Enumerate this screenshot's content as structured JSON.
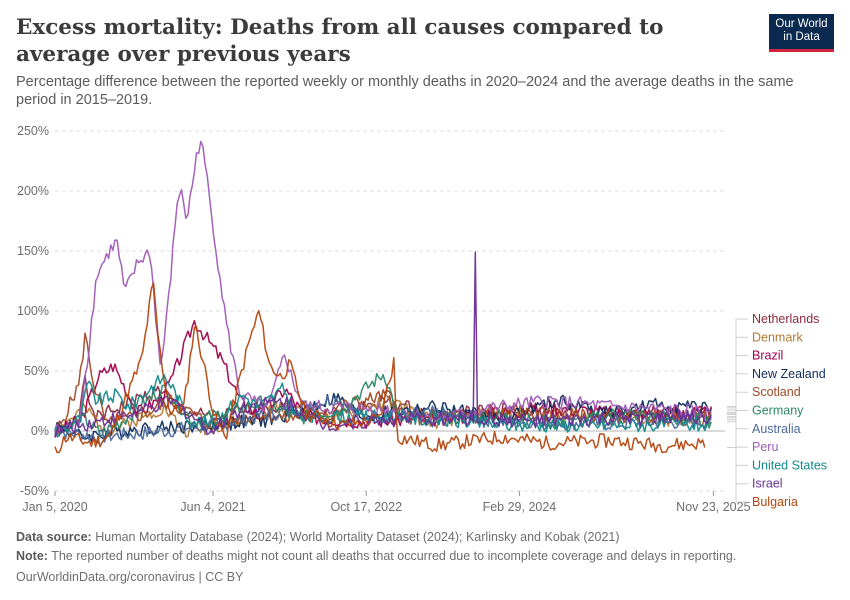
{
  "header": {
    "title": "Excess mortality: Deaths from all causes compared to average over previous years",
    "subtitle": "Percentage difference between the reported weekly or monthly deaths in 2020–2024 and the average deaths in the same period in 2015–2019."
  },
  "logo": {
    "line1": "Our World",
    "line2": "in Data"
  },
  "footer": {
    "source_label": "Data source:",
    "source_text": "Human Mortality Database (2024); World Mortality Dataset (2024); Karlinsky and Kobak (2021)",
    "note_label": "Note:",
    "note_text": "The reported number of deaths might not count all deaths that occurred due to incomplete coverage and delays in reporting.",
    "url": "OurWorldinData.org/coronavirus | CC BY"
  },
  "chart_data": {
    "type": "line",
    "y_unit": "%",
    "ylim": [
      -50,
      250
    ],
    "y_ticks": [
      -50,
      0,
      50,
      100,
      150,
      200,
      250
    ],
    "y_tick_labels": [
      "-50%",
      "0%",
      "50%",
      "100%",
      "150%",
      "200%",
      "250%"
    ],
    "x_range": [
      "2020-01-05",
      "2025-12-31"
    ],
    "x_ticks": [
      "2020-01-05",
      "2021-06-04",
      "2022-10-17",
      "2024-02-29",
      "2025-11-23"
    ],
    "x_tick_labels": [
      "Jan 5, 2020",
      "Jun 4, 2021",
      "Oct 17, 2022",
      "Feb 29, 2024",
      "Nov 23, 2025"
    ],
    "grid": "horizontal dashed",
    "legend_position": "right",
    "series": [
      {
        "name": "Netherlands",
        "color": "#8c2a3c",
        "end": "2025-11-16",
        "points": [
          [
            "2020-01-05",
            2
          ],
          [
            "2020-03-20",
            5
          ],
          [
            "2020-04-10",
            50
          ],
          [
            "2020-05-10",
            10
          ],
          [
            "2020-11-01",
            30
          ],
          [
            "2020-12-20",
            35
          ],
          [
            "2021-02-01",
            20
          ],
          [
            "2021-06-01",
            10
          ],
          [
            "2021-11-20",
            22
          ],
          [
            "2022-06-01",
            12
          ],
          [
            "2022-12-20",
            25
          ],
          [
            "2023-06-01",
            12
          ],
          [
            "2024-01-01",
            18
          ],
          [
            "2024-09-01",
            12
          ],
          [
            "2025-03-01",
            16
          ],
          [
            "2025-11-16",
            14
          ]
        ]
      },
      {
        "name": "Denmark",
        "color": "#b27a33",
        "end": "2025-11-16",
        "points": [
          [
            "2020-01-05",
            0
          ],
          [
            "2020-04-10",
            18
          ],
          [
            "2020-07-01",
            0
          ],
          [
            "2020-12-25",
            20
          ],
          [
            "2021-03-01",
            0
          ],
          [
            "2021-11-01",
            10
          ],
          [
            "2022-02-01",
            25
          ],
          [
            "2022-07-01",
            10
          ],
          [
            "2022-12-20",
            25
          ],
          [
            "2023-06-01",
            8
          ],
          [
            "2024-01-01",
            15
          ],
          [
            "2024-10-01",
            10
          ],
          [
            "2025-11-16",
            10
          ]
        ]
      },
      {
        "name": "Brazil",
        "color": "#a1004b",
        "end": "2025-11-16",
        "points": [
          [
            "2020-01-05",
            -2
          ],
          [
            "2020-04-01",
            10
          ],
          [
            "2020-05-25",
            45
          ],
          [
            "2020-07-15",
            55
          ],
          [
            "2020-10-01",
            15
          ],
          [
            "2020-12-01",
            25
          ],
          [
            "2021-01-15",
            40
          ],
          [
            "2021-04-05",
            92
          ],
          [
            "2021-05-20",
            75
          ],
          [
            "2021-07-01",
            60
          ],
          [
            "2021-09-01",
            25
          ],
          [
            "2021-11-01",
            12
          ],
          [
            "2022-01-25",
            35
          ],
          [
            "2022-04-01",
            12
          ],
          [
            "2022-10-01",
            8
          ],
          [
            "2023-06-01",
            10
          ],
          [
            "2024-01-01",
            15
          ],
          [
            "2024-06-01",
            20
          ],
          [
            "2025-01-01",
            15
          ],
          [
            "2025-11-16",
            15
          ]
        ]
      },
      {
        "name": "New Zealand",
        "color": "#0e2e5c",
        "end": "2025-11-16",
        "points": [
          [
            "2020-01-05",
            5
          ],
          [
            "2020-04-01",
            -5
          ],
          [
            "2020-10-01",
            2
          ],
          [
            "2021-06-01",
            5
          ],
          [
            "2022-01-01",
            10
          ],
          [
            "2022-07-10",
            28
          ],
          [
            "2022-10-01",
            12
          ],
          [
            "2023-06-01",
            20
          ],
          [
            "2024-01-01",
            10
          ],
          [
            "2024-07-01",
            25
          ],
          [
            "2025-01-01",
            15
          ],
          [
            "2025-06-01",
            22
          ],
          [
            "2025-11-16",
            18
          ]
        ]
      },
      {
        "name": "Scotland",
        "color": "#a04a25",
        "end": "2025-11-16",
        "points": [
          [
            "2020-01-05",
            -5
          ],
          [
            "2020-03-25",
            40
          ],
          [
            "2020-04-12",
            80
          ],
          [
            "2020-05-10",
            40
          ],
          [
            "2020-06-20",
            5
          ],
          [
            "2020-11-01",
            15
          ],
          [
            "2021-01-15",
            25
          ],
          [
            "2021-06-01",
            5
          ],
          [
            "2021-11-01",
            15
          ],
          [
            "2022-02-01",
            10
          ],
          [
            "2022-12-25",
            30
          ],
          [
            "2023-03-01",
            10
          ],
          [
            "2024-01-01",
            15
          ],
          [
            "2025-01-01",
            12
          ],
          [
            "2025-11-16",
            10
          ]
        ]
      },
      {
        "name": "Germany",
        "color": "#2d8768",
        "end": "2025-11-16",
        "points": [
          [
            "2020-01-05",
            0
          ],
          [
            "2020-04-10",
            10
          ],
          [
            "2020-06-01",
            -3
          ],
          [
            "2020-08-10",
            8
          ],
          [
            "2020-12-20",
            35
          ],
          [
            "2021-01-15",
            30
          ],
          [
            "2021-04-01",
            8
          ],
          [
            "2021-11-25",
            25
          ],
          [
            "2022-03-01",
            10
          ],
          [
            "2022-07-25",
            18
          ],
          [
            "2022-12-15",
            48
          ],
          [
            "2023-02-01",
            10
          ],
          [
            "2024-01-01",
            12
          ],
          [
            "2024-08-01",
            5
          ],
          [
            "2025-01-15",
            15
          ],
          [
            "2025-11-16",
            8
          ]
        ]
      },
      {
        "name": "Australia",
        "color": "#4c6a9c",
        "end": "2025-11-16",
        "points": [
          [
            "2020-01-05",
            0
          ],
          [
            "2020-06-01",
            -5
          ],
          [
            "2021-01-01",
            0
          ],
          [
            "2021-06-01",
            5
          ],
          [
            "2022-01-01",
            15
          ],
          [
            "2022-07-20",
            28
          ],
          [
            "2022-10-01",
            12
          ],
          [
            "2023-06-01",
            15
          ],
          [
            "2024-01-01",
            8
          ],
          [
            "2025-01-01",
            6
          ],
          [
            "2025-11-16",
            8
          ]
        ]
      },
      {
        "name": "Peru",
        "color": "#a05ab5",
        "end": "2025-11-16",
        "points": [
          [
            "2020-01-05",
            0
          ],
          [
            "2020-03-20",
            5
          ],
          [
            "2020-04-20",
            60
          ],
          [
            "2020-05-20",
            130
          ],
          [
            "2020-07-01",
            150
          ],
          [
            "2020-07-25",
            158
          ],
          [
            "2020-08-20",
            115
          ],
          [
            "2020-10-01",
            140
          ],
          [
            "2020-11-10",
            150
          ],
          [
            "2020-12-15",
            50
          ],
          [
            "2021-01-10",
            110
          ],
          [
            "2021-02-10",
            200
          ],
          [
            "2021-02-25",
            195
          ],
          [
            "2021-03-10",
            175
          ],
          [
            "2021-04-15",
            235
          ],
          [
            "2021-04-25",
            242
          ],
          [
            "2021-05-10",
            220
          ],
          [
            "2021-06-15",
            150
          ],
          [
            "2021-07-20",
            85
          ],
          [
            "2021-09-01",
            30
          ],
          [
            "2021-12-01",
            18
          ],
          [
            "2022-01-25",
            65
          ],
          [
            "2022-02-20",
            40
          ],
          [
            "2022-04-01",
            20
          ],
          [
            "2023-01-01",
            18
          ],
          [
            "2023-06-01",
            10
          ],
          [
            "2024-01-01",
            20
          ],
          [
            "2024-06-01",
            25
          ],
          [
            "2025-01-01",
            20
          ],
          [
            "2025-06-01",
            18
          ],
          [
            "2025-11-16",
            15
          ]
        ]
      },
      {
        "name": "United States",
        "color": "#148a8c",
        "end": "2025-11-16",
        "points": [
          [
            "2020-01-05",
            0
          ],
          [
            "2020-03-30",
            10
          ],
          [
            "2020-04-20",
            40
          ],
          [
            "2020-05-20",
            25
          ],
          [
            "2020-07-25",
            30
          ],
          [
            "2020-09-01",
            20
          ],
          [
            "2020-12-25",
            45
          ],
          [
            "2021-01-15",
            40
          ],
          [
            "2021-03-15",
            10
          ],
          [
            "2021-06-01",
            5
          ],
          [
            "2021-09-10",
            30
          ],
          [
            "2021-11-01",
            20
          ],
          [
            "2022-01-20",
            35
          ],
          [
            "2022-03-15",
            10
          ],
          [
            "2022-07-01",
            12
          ],
          [
            "2023-01-01",
            12
          ],
          [
            "2024-01-01",
            5
          ],
          [
            "2025-01-01",
            5
          ],
          [
            "2025-11-16",
            5
          ]
        ]
      },
      {
        "name": "Israel",
        "color": "#6b2e96",
        "end": "2025-11-16",
        "points": [
          [
            "2020-01-05",
            0
          ],
          [
            "2020-10-01",
            15
          ],
          [
            "2021-01-20",
            25
          ],
          [
            "2021-06-01",
            0
          ],
          [
            "2021-09-10",
            20
          ],
          [
            "2022-01-25",
            25
          ],
          [
            "2022-06-01",
            5
          ],
          [
            "2023-01-01",
            10
          ],
          [
            "2023-10-01",
            10
          ],
          [
            "2023-10-08",
            150
          ],
          [
            "2023-10-15",
            10
          ],
          [
            "2024-06-01",
            8
          ],
          [
            "2025-01-01",
            10
          ],
          [
            "2025-11-16",
            12
          ]
        ]
      },
      {
        "name": "Bulgaria",
        "color": "#b5460f",
        "end": "2025-10-31",
        "points": [
          [
            "2020-01-05",
            -18
          ],
          [
            "2020-02-10",
            -5
          ],
          [
            "2020-05-01",
            -10
          ],
          [
            "2020-07-01",
            -5
          ],
          [
            "2020-10-15",
            60
          ],
          [
            "2020-11-20",
            125
          ],
          [
            "2020-12-10",
            70
          ],
          [
            "2021-01-15",
            15
          ],
          [
            "2021-03-01",
            20
          ],
          [
            "2021-04-05",
            90
          ],
          [
            "2021-05-01",
            60
          ],
          [
            "2021-06-10",
            10
          ],
          [
            "2021-07-15",
            -5
          ],
          [
            "2021-09-25",
            70
          ],
          [
            "2021-11-01",
            100
          ],
          [
            "2021-12-05",
            55
          ],
          [
            "2022-01-10",
            45
          ],
          [
            "2022-02-10",
            55
          ],
          [
            "2022-04-01",
            15
          ],
          [
            "2022-08-01",
            5
          ],
          [
            "2022-12-01",
            10
          ],
          [
            "2023-01-15",
            58
          ],
          [
            "2023-01-25",
            -5
          ],
          [
            "2023-06-01",
            -12
          ],
          [
            "2024-01-01",
            -5
          ],
          [
            "2024-06-01",
            -10
          ],
          [
            "2025-01-01",
            -8
          ],
          [
            "2025-06-01",
            -12
          ],
          [
            "2025-10-31",
            -10
          ]
        ]
      }
    ]
  }
}
